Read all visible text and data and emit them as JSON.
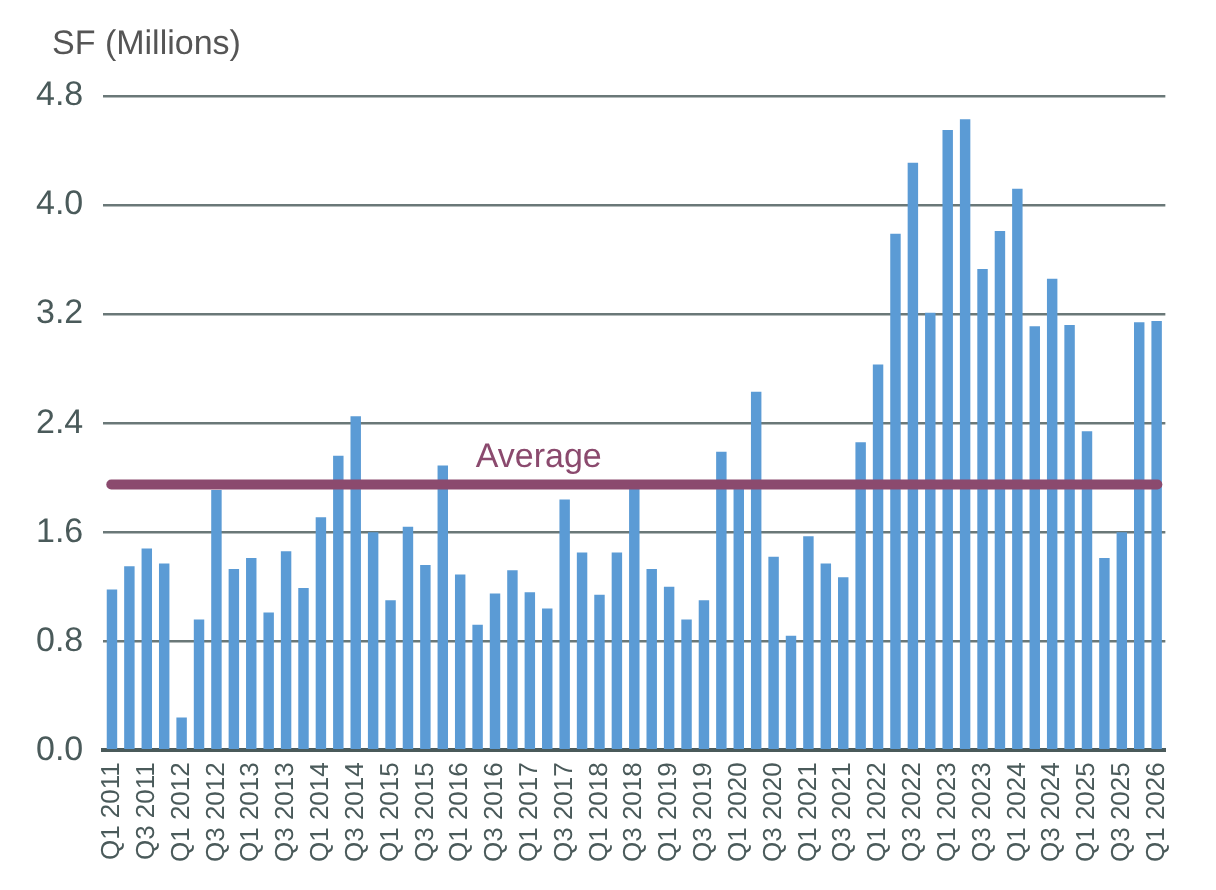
{
  "chart_data": {
    "type": "bar",
    "ylabel": "SF (Millions)",
    "categories": [
      "Q1 2011",
      null,
      "Q3 2011",
      null,
      "Q1 2012",
      null,
      "Q3 2012",
      null,
      "Q1 2013",
      null,
      "Q3 2013",
      null,
      "Q1 2014",
      null,
      "Q3 2014",
      null,
      "Q1 2015",
      null,
      "Q3 2015",
      null,
      "Q1 2016",
      null,
      "Q3 2016",
      null,
      "Q1 2017",
      null,
      "Q3 2017",
      null,
      "Q1 2018",
      null,
      "Q3 2018",
      null,
      "Q1 2019",
      null,
      "Q3 2019",
      null,
      "Q1 2020",
      null,
      "Q3 2020",
      null,
      "Q1 2021",
      null,
      "Q3 2021",
      null,
      "Q1 2022",
      null,
      "Q3 2022",
      null,
      "Q1 2023",
      null,
      "Q3 2023",
      null,
      "Q1 2024",
      null,
      "Q3 2024",
      null,
      "Q1 2025",
      null,
      "Q3 2025",
      null,
      "Q1 2026"
    ],
    "values": [
      1.18,
      1.35,
      1.48,
      1.37,
      0.24,
      0.96,
      1.91,
      1.33,
      1.41,
      1.01,
      1.46,
      1.19,
      1.71,
      2.16,
      2.45,
      1.6,
      1.1,
      1.64,
      1.36,
      2.09,
      1.29,
      0.92,
      1.15,
      1.32,
      1.16,
      1.04,
      1.84,
      1.45,
      1.14,
      1.45,
      1.93,
      1.33,
      1.2,
      0.96,
      1.1,
      2.19,
      1.93,
      2.63,
      1.42,
      0.84,
      1.57,
      1.37,
      1.27,
      2.26,
      2.83,
      3.79,
      4.31,
      3.21,
      4.55,
      4.63,
      3.53,
      3.81,
      4.12,
      3.11,
      3.46,
      3.12,
      2.34,
      1.41,
      1.6,
      3.14,
      3.15
    ],
    "color": "#5b9bd5",
    "ylim": [
      0,
      4.8
    ],
    "yticks": [
      {
        "value": 0,
        "label": "0.0"
      },
      0.8,
      1.6,
      2.4,
      3.2,
      {
        "value": 4,
        "label": "4.0"
      },
      4.8
    ],
    "grid": "y",
    "ref_lines": [
      {
        "axis": "y",
        "value": 1.95,
        "label": "Average",
        "color": "#8b4a6e"
      }
    ]
  }
}
